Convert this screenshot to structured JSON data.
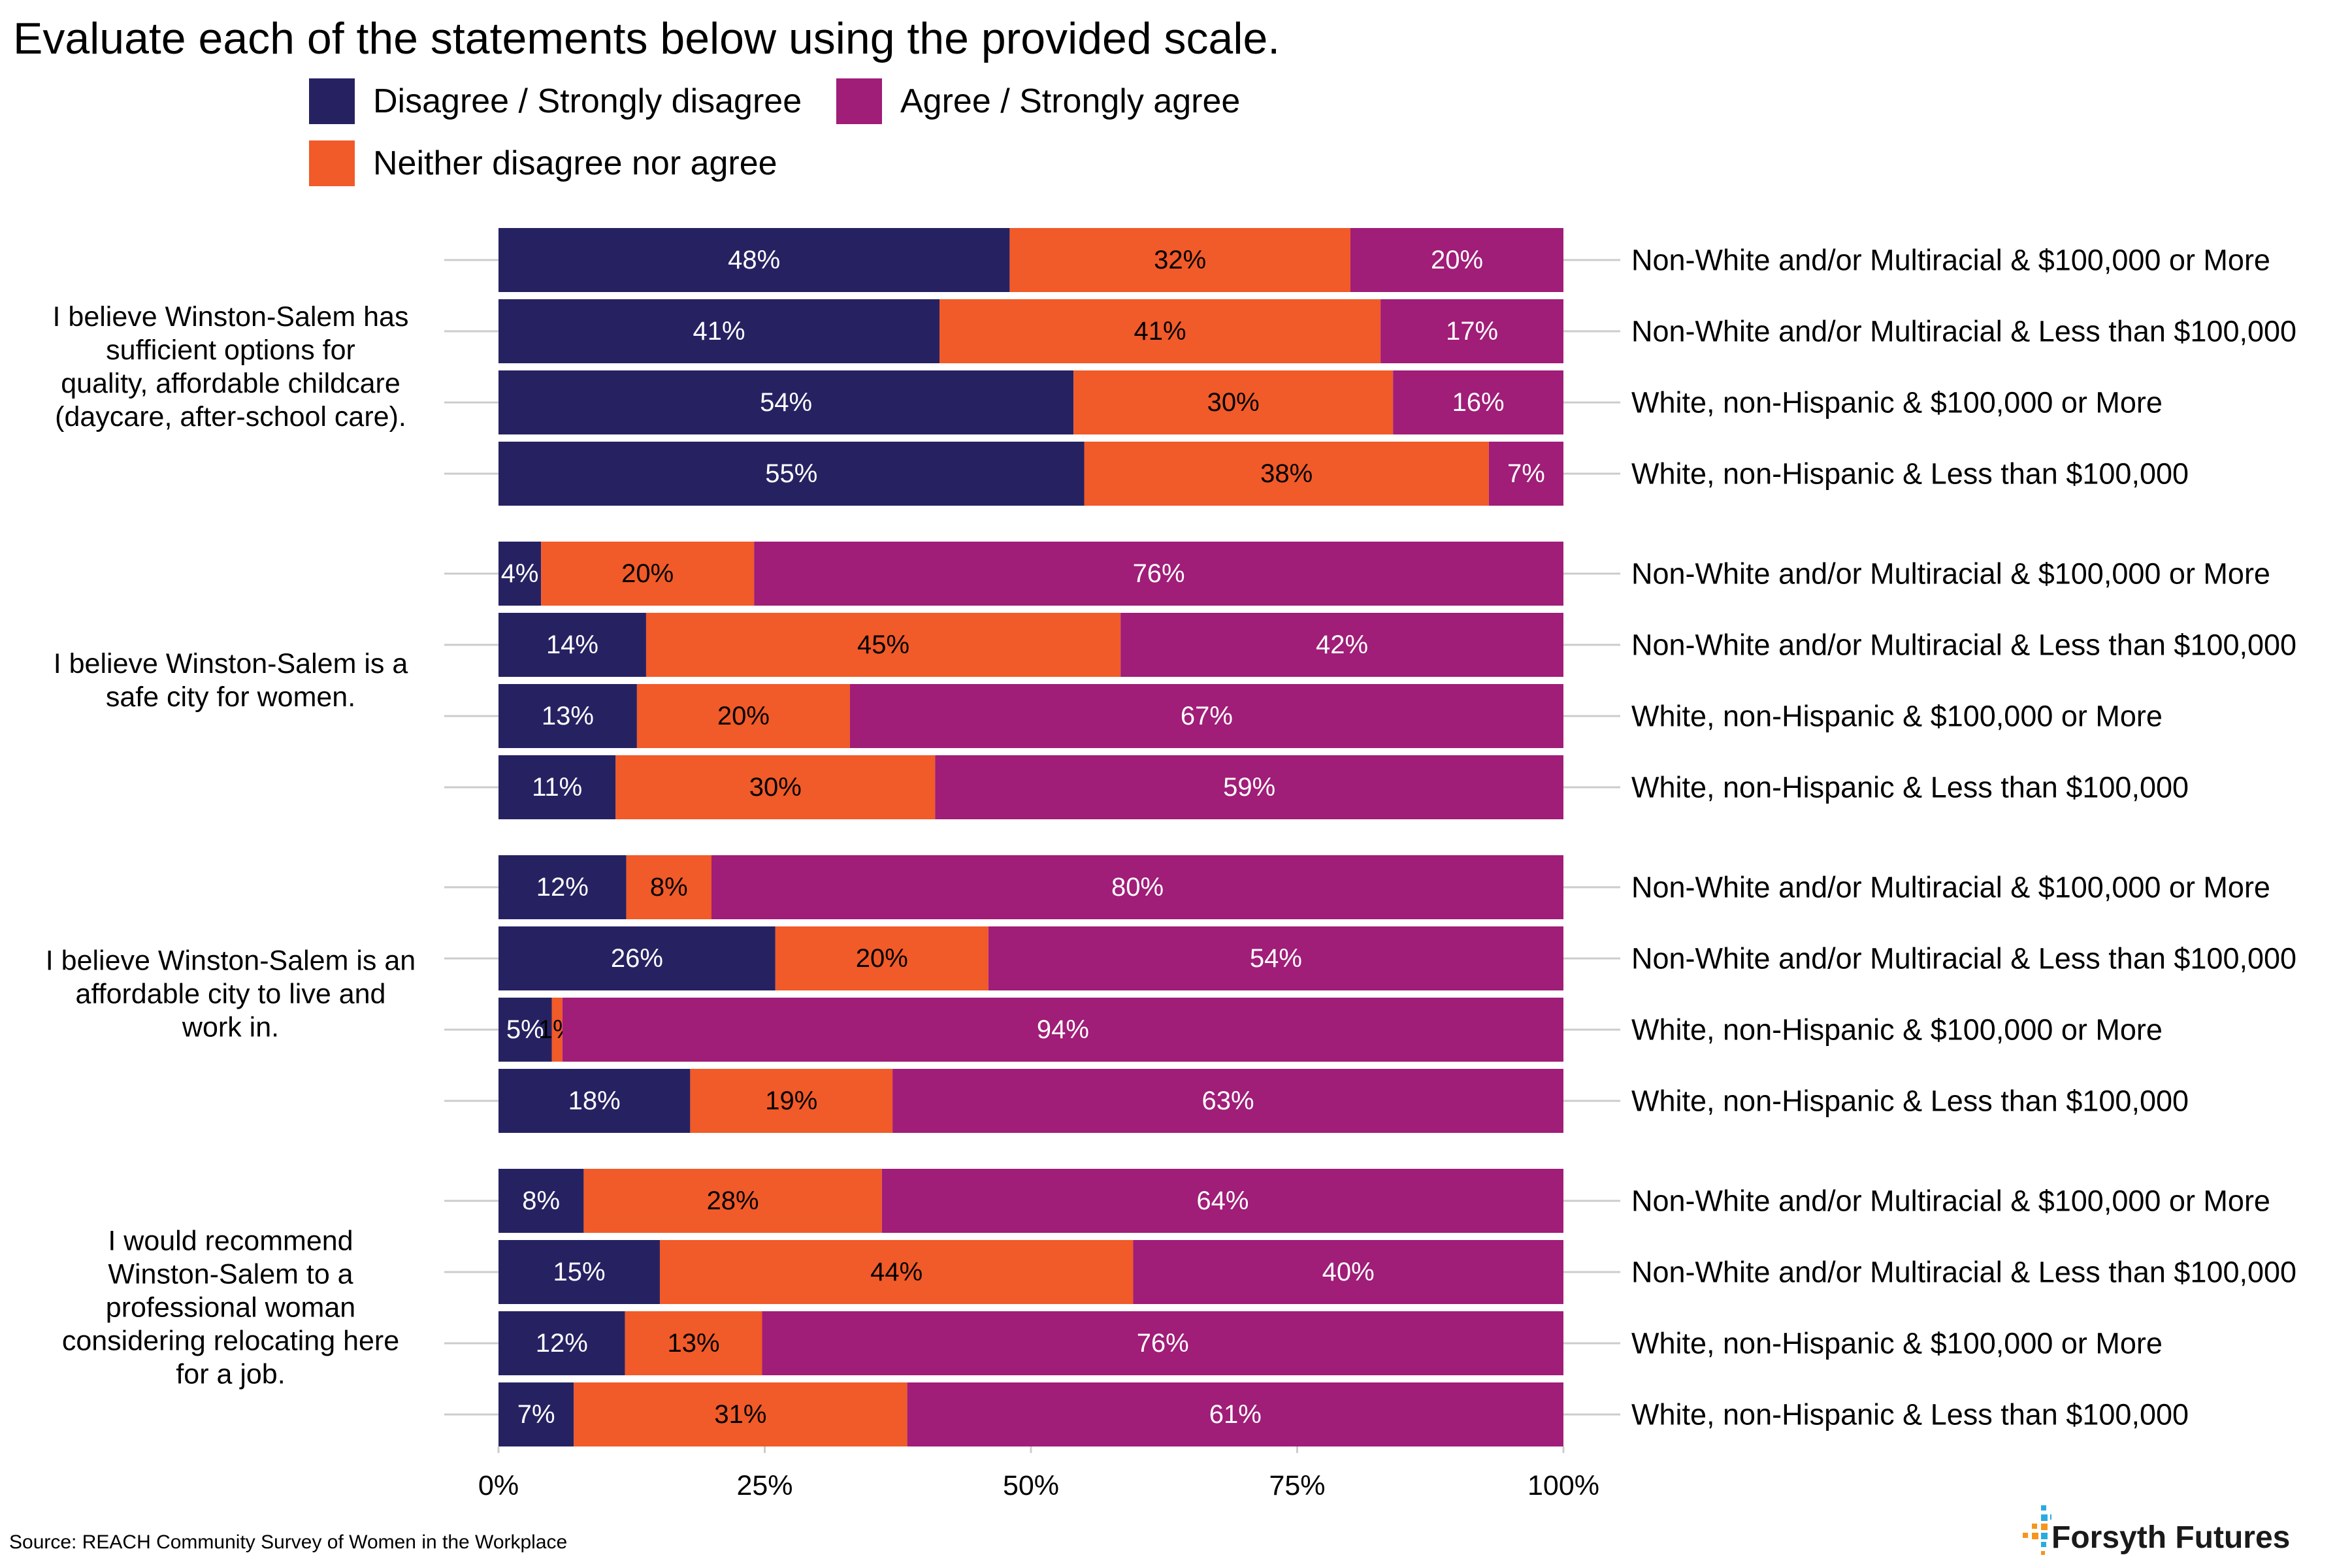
{
  "title": "Evaluate each of the statements below using the provided scale.",
  "source": "Source: REACH Community Survey of Women in the Workplace",
  "brand": "Forsyth Futures",
  "legend": [
    {
      "name": "Disagree / Strongly disagree",
      "color": "#262262"
    },
    {
      "name": "Agree / Strongly agree",
      "color": "#A01D78"
    },
    {
      "name": "Neither disagree nor agree",
      "color": "#F15A29"
    }
  ],
  "chart_data": {
    "type": "bar",
    "orientation": "horizontal",
    "stacked": true,
    "xlim": [
      0,
      100
    ],
    "x_ticks": [
      "0%",
      "25%",
      "50%",
      "75%",
      "100%"
    ],
    "series_order": [
      "Disagree / Strongly disagree",
      "Neither disagree nor agree",
      "Agree / Strongly agree"
    ],
    "colors": {
      "disagree": "#262262",
      "neither": "#F15A29",
      "agree": "#A01D78"
    },
    "groups": [
      {
        "statement": [
          "I believe Winston-Salem has",
          "sufficient options for",
          "quality, affordable childcare",
          "(daycare, after-school care)."
        ],
        "rows": [
          {
            "label": "Non-White and/or Multiracial & $100,000 or More",
            "values": [
              48,
              32,
              20
            ],
            "labels": [
              "48%",
              "32%",
              "20%"
            ]
          },
          {
            "label": "Non-White and/or Multiracial & Less than $100,000",
            "values": [
              41,
              41,
              17
            ],
            "labels": [
              "41%",
              "41%",
              "17%"
            ]
          },
          {
            "label": "White, non-Hispanic & $100,000 or More",
            "values": [
              54,
              30,
              16
            ],
            "labels": [
              "54%",
              "30%",
              "16%"
            ]
          },
          {
            "label": "White, non-Hispanic & Less than $100,000",
            "values": [
              55,
              38,
              7
            ],
            "labels": [
              "55%",
              "38%",
              "7%"
            ]
          }
        ]
      },
      {
        "statement": [
          "I believe Winston-Salem is a",
          "safe city for women."
        ],
        "rows": [
          {
            "label": "Non-White and/or Multiracial & $100,000 or More",
            "values": [
              4,
              20,
              76
            ],
            "labels": [
              "4%",
              "20%",
              "76%"
            ]
          },
          {
            "label": "Non-White and/or Multiracial & Less than $100,000",
            "values": [
              14,
              45,
              42
            ],
            "labels": [
              "14%",
              "45%",
              "42%"
            ]
          },
          {
            "label": "White, non-Hispanic & $100,000 or More",
            "values": [
              13,
              20,
              67
            ],
            "labels": [
              "13%",
              "20%",
              "67%"
            ]
          },
          {
            "label": "White, non-Hispanic & Less than $100,000",
            "values": [
              11,
              30,
              59
            ],
            "labels": [
              "11%",
              "30%",
              "59%"
            ]
          }
        ]
      },
      {
        "statement": [
          "I believe Winston-Salem is an",
          "affordable city to live and",
          "work in."
        ],
        "rows": [
          {
            "label": "Non-White and/or Multiracial & $100,000 or More",
            "values": [
              12,
              8,
              80
            ],
            "labels": [
              "12%",
              "8%",
              "80%"
            ]
          },
          {
            "label": "Non-White and/or Multiracial & Less than $100,000",
            "values": [
              26,
              20,
              54
            ],
            "labels": [
              "26%",
              "20%",
              "54%"
            ]
          },
          {
            "label": "White, non-Hispanic & $100,000 or More",
            "values": [
              5,
              1,
              94
            ],
            "labels": [
              "5%",
              "1%",
              "94%"
            ]
          },
          {
            "label": "White, non-Hispanic & Less than $100,000",
            "values": [
              18,
              19,
              63
            ],
            "labels": [
              "18%",
              "19%",
              "63%"
            ]
          }
        ]
      },
      {
        "statement": [
          "I would recommend",
          "Winston-Salem to a",
          "professional woman",
          "considering relocating here",
          "for a job."
        ],
        "rows": [
          {
            "label": "Non-White and/or Multiracial & $100,000 or More",
            "values": [
              8,
              28,
              64
            ],
            "labels": [
              "8%",
              "28%",
              "64%"
            ]
          },
          {
            "label": "Non-White and/or Multiracial & Less than $100,000",
            "values": [
              15,
              44,
              40
            ],
            "labels": [
              "15%",
              "44%",
              "40%"
            ]
          },
          {
            "label": "White, non-Hispanic & $100,000 or More",
            "values": [
              12,
              13,
              76
            ],
            "labels": [
              "12%",
              "13%",
              "76%"
            ]
          },
          {
            "label": "White, non-Hispanic & Less than $100,000",
            "values": [
              7,
              31,
              61
            ],
            "labels": [
              "7%",
              "31%",
              "61%"
            ]
          }
        ]
      }
    ]
  }
}
